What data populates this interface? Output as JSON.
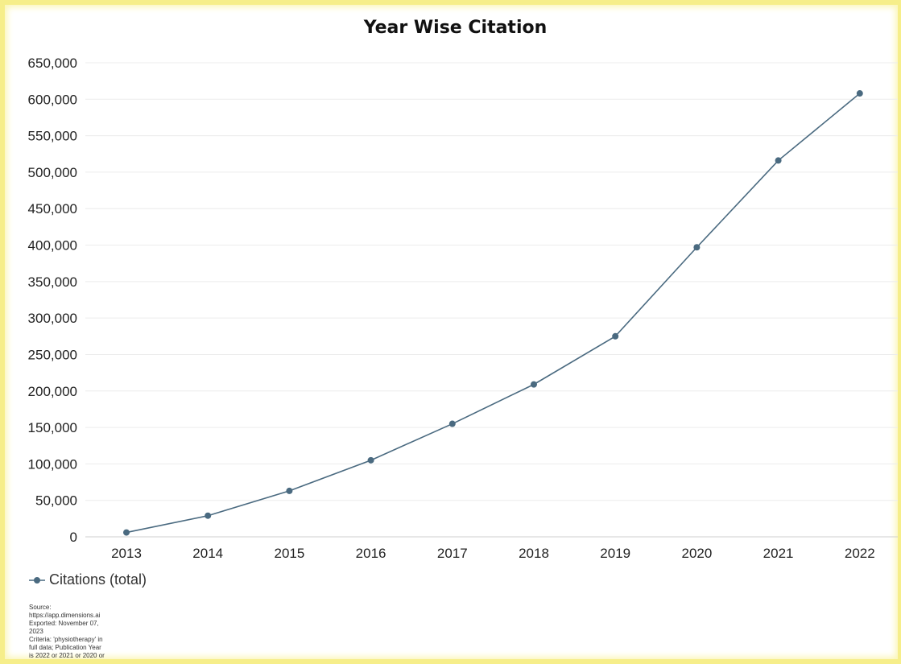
{
  "chart_data": {
    "type": "line",
    "title": "Year Wise Citation",
    "xlabel": "",
    "ylabel": "",
    "categories": [
      "2013",
      "2014",
      "2015",
      "2016",
      "2017",
      "2018",
      "2019",
      "2020",
      "2021",
      "2022"
    ],
    "series": [
      {
        "name": "Citations (total)",
        "values": [
          6000,
          29000,
          63000,
          105000,
          155000,
          209000,
          275000,
          397000,
          516000,
          608000
        ],
        "color": "#4a6a80"
      }
    ],
    "ylim": [
      0,
      650000
    ],
    "yticks": [
      0,
      50000,
      100000,
      150000,
      200000,
      250000,
      300000,
      350000,
      400000,
      450000,
      500000,
      550000,
      600000,
      650000
    ],
    "ytick_labels": [
      "0",
      "50,000",
      "100,000",
      "150,000",
      "200,000",
      "250,000",
      "300,000",
      "350,000",
      "400,000",
      "450,000",
      "500,000",
      "550,000",
      "600,000",
      "650,000"
    ],
    "grid": true,
    "legend_position": "bottom-left"
  },
  "legend": {
    "label": "Citations (total)"
  },
  "source_note": {
    "line1": "Source:",
    "line2": "https://app.dimensions.ai",
    "line3": "Exported: November 07,",
    "line4": "2023",
    "line5": "Criteria: 'physiotherapy' in",
    "line6": "full data; Publication Year",
    "line7": "is 2022 or 2021 or 2020 or"
  },
  "colors": {
    "line": "#4a6a80",
    "grid": "#ececec",
    "frame": "#f6ee8a"
  }
}
